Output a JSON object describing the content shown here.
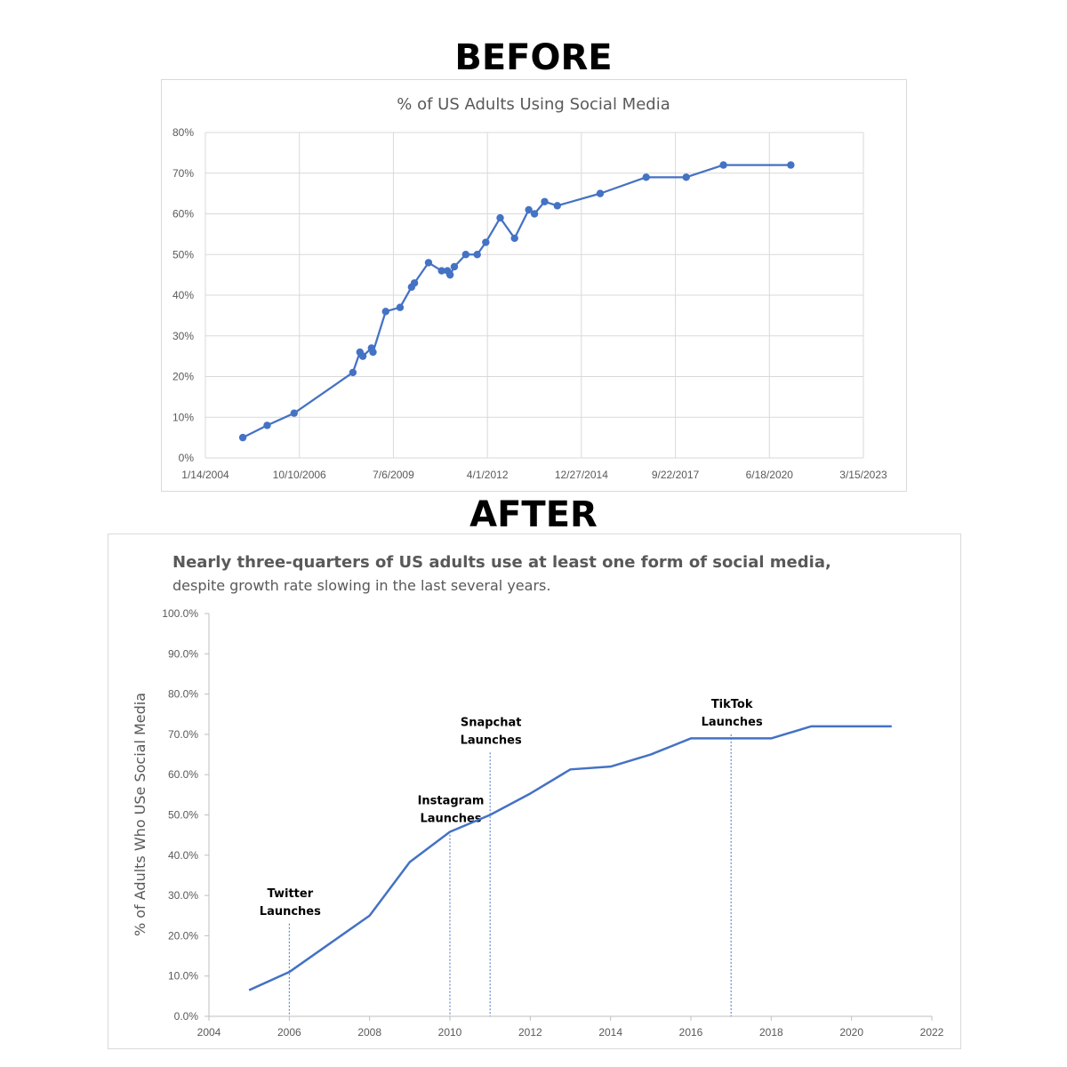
{
  "headings": {
    "before": "BEFORE",
    "after": "AFTER"
  },
  "chart_data": [
    {
      "type": "line",
      "title": "% of US Adults Using Social Media",
      "xlabel": "",
      "ylabel": "",
      "x_axis_type": "date",
      "xlim": [
        "2004-01-14",
        "2023-03-15"
      ],
      "x_ticks": [
        "1/14/2004",
        "10/10/2006",
        "7/6/2009",
        "4/1/2012",
        "12/27/2014",
        "9/22/2017",
        "6/18/2020",
        "3/15/2023"
      ],
      "ylim": [
        0,
        0.8
      ],
      "y_ticks": [
        "0%",
        "10%",
        "20%",
        "30%",
        "40%",
        "50%",
        "60%",
        "70%",
        "80%"
      ],
      "grid": true,
      "markers": true,
      "color": "#4472C4",
      "points": [
        {
          "x": "2005-02-15",
          "y": 0.05
        },
        {
          "x": "2005-11-01",
          "y": 0.08
        },
        {
          "x": "2006-08-15",
          "y": 0.11
        },
        {
          "x": "2008-05-01",
          "y": 0.21
        },
        {
          "x": "2008-07-15",
          "y": 0.26
        },
        {
          "x": "2008-08-15",
          "y": 0.25
        },
        {
          "x": "2008-11-15",
          "y": 0.27
        },
        {
          "x": "2008-12-01",
          "y": 0.26
        },
        {
          "x": "2009-04-15",
          "y": 0.36
        },
        {
          "x": "2009-09-15",
          "y": 0.37
        },
        {
          "x": "2010-01-15",
          "y": 0.42
        },
        {
          "x": "2010-02-15",
          "y": 0.43
        },
        {
          "x": "2010-07-15",
          "y": 0.48
        },
        {
          "x": "2010-12-01",
          "y": 0.46
        },
        {
          "x": "2011-02-01",
          "y": 0.46
        },
        {
          "x": "2011-03-01",
          "y": 0.45
        },
        {
          "x": "2011-04-15",
          "y": 0.47
        },
        {
          "x": "2011-08-15",
          "y": 0.5
        },
        {
          "x": "2011-12-15",
          "y": 0.5
        },
        {
          "x": "2012-03-15",
          "y": 0.53
        },
        {
          "x": "2012-08-15",
          "y": 0.59
        },
        {
          "x": "2013-01-15",
          "y": 0.54
        },
        {
          "x": "2013-06-15",
          "y": 0.61
        },
        {
          "x": "2013-08-15",
          "y": 0.6
        },
        {
          "x": "2013-12-01",
          "y": 0.63
        },
        {
          "x": "2014-04-15",
          "y": 0.62
        },
        {
          "x": "2015-07-15",
          "y": 0.65
        },
        {
          "x": "2016-11-15",
          "y": 0.69
        },
        {
          "x": "2018-01-15",
          "y": 0.69
        },
        {
          "x": "2019-02-15",
          "y": 0.72
        },
        {
          "x": "2021-02-01",
          "y": 0.72
        }
      ]
    },
    {
      "type": "line",
      "title": "Nearly three-quarters of US adults use at least one form of social media,",
      "subtitle": "despite growth rate slowing in the last several years.",
      "xlabel": "",
      "ylabel": "% of Adults Who USe Social Media",
      "xlim": [
        2004,
        2022
      ],
      "x_ticks": [
        "2004",
        "2006",
        "2008",
        "2010",
        "2012",
        "2014",
        "2016",
        "2018",
        "2020",
        "2022"
      ],
      "ylim": [
        0,
        1.0
      ],
      "y_ticks": [
        "0.0%",
        "10.0%",
        "20.0%",
        "30.0%",
        "40.0%",
        "50.0%",
        "60.0%",
        "70.0%",
        "80.0%",
        "90.0%",
        "100.0%"
      ],
      "grid": false,
      "markers": false,
      "color": "#4472C4",
      "x": [
        2005,
        2006,
        2007,
        2008,
        2009,
        2010,
        2011,
        2012,
        2013,
        2014,
        2015,
        2016,
        2017,
        2018,
        2019,
        2020,
        2021
      ],
      "values": [
        0.065,
        0.11,
        0.18,
        0.25,
        0.383,
        0.458,
        0.5,
        0.553,
        0.613,
        0.62,
        0.65,
        0.69,
        0.69,
        0.69,
        0.72,
        0.72,
        0.72
      ],
      "annotations": [
        {
          "x": 2006,
          "y_top": 0.23,
          "lines": [
            "Twitter",
            "Launches"
          ]
        },
        {
          "x": 2010,
          "y_top": 0.46,
          "lines": [
            "Instagram",
            "Launches"
          ]
        },
        {
          "x": 2011,
          "y_top": 0.655,
          "lines": [
            "Snapchat",
            "Launches"
          ]
        },
        {
          "x": 2017,
          "y_top": 0.7,
          "lines": [
            "TikTok",
            "Launches"
          ]
        }
      ]
    }
  ]
}
